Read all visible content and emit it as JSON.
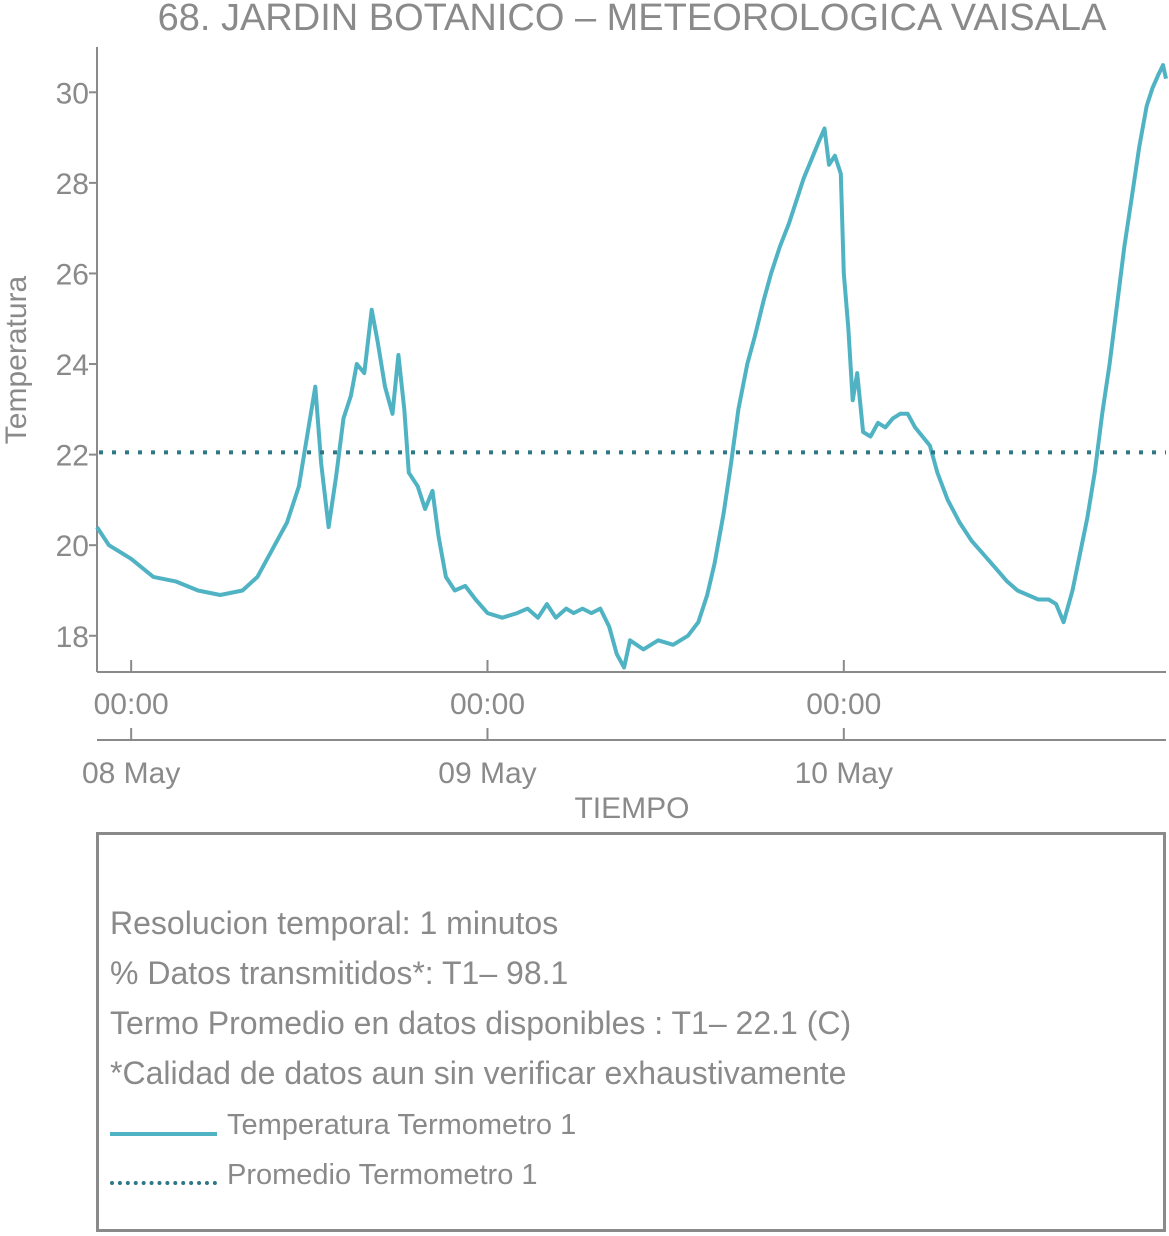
{
  "chart_data": {
    "type": "line",
    "title": "68. JARDIN BOTANICO – METEOROLOGICA VAISALA",
    "xlabel": "TIEMPO",
    "ylabel": "Temperatura",
    "x_unit": "hours since 08 May 00:00",
    "xlim": [
      -2.3,
      69.7
    ],
    "ylim": [
      17.2,
      31.0
    ],
    "yticks": [
      18,
      20,
      22,
      24,
      26,
      28,
      30
    ],
    "xticks": [
      {
        "x": 0,
        "time": "00:00",
        "date": "08 May"
      },
      {
        "x": 24,
        "time": "00:00",
        "date": "09 May"
      },
      {
        "x": 48,
        "time": "00:00",
        "date": "10 May"
      }
    ],
    "series": [
      {
        "name": "Temperatura Termometro 1",
        "color": "#4fb3c3",
        "style": "solid",
        "points": [
          [
            -2.3,
            20.4
          ],
          [
            -1.5,
            20.0
          ],
          [
            0,
            19.7
          ],
          [
            1.5,
            19.3
          ],
          [
            3,
            19.2
          ],
          [
            4.5,
            19.0
          ],
          [
            6,
            18.9
          ],
          [
            7.5,
            19.0
          ],
          [
            8.5,
            19.3
          ],
          [
            9.5,
            19.9
          ],
          [
            10.5,
            20.5
          ],
          [
            11.3,
            21.3
          ],
          [
            11.9,
            22.5
          ],
          [
            12.4,
            23.5
          ],
          [
            12.8,
            21.8
          ],
          [
            13.3,
            20.4
          ],
          [
            13.8,
            21.5
          ],
          [
            14.3,
            22.8
          ],
          [
            14.8,
            23.3
          ],
          [
            15.2,
            24.0
          ],
          [
            15.7,
            23.8
          ],
          [
            16.2,
            25.2
          ],
          [
            16.6,
            24.5
          ],
          [
            17.1,
            23.5
          ],
          [
            17.6,
            22.9
          ],
          [
            18.0,
            24.2
          ],
          [
            18.4,
            23.0
          ],
          [
            18.7,
            21.6
          ],
          [
            19.3,
            21.3
          ],
          [
            19.8,
            20.8
          ],
          [
            20.3,
            21.2
          ],
          [
            20.7,
            20.2
          ],
          [
            21.2,
            19.3
          ],
          [
            21.8,
            19.0
          ],
          [
            22.5,
            19.1
          ],
          [
            23.2,
            18.8
          ],
          [
            24.0,
            18.5
          ],
          [
            25.0,
            18.4
          ],
          [
            26.0,
            18.5
          ],
          [
            26.7,
            18.6
          ],
          [
            27.4,
            18.4
          ],
          [
            28.0,
            18.7
          ],
          [
            28.6,
            18.4
          ],
          [
            29.3,
            18.6
          ],
          [
            29.8,
            18.5
          ],
          [
            30.4,
            18.6
          ],
          [
            31.0,
            18.5
          ],
          [
            31.6,
            18.6
          ],
          [
            32.2,
            18.2
          ],
          [
            32.7,
            17.6
          ],
          [
            33.2,
            17.3
          ],
          [
            33.6,
            17.9
          ],
          [
            34.5,
            17.7
          ],
          [
            35.5,
            17.9
          ],
          [
            36.5,
            17.8
          ],
          [
            37.5,
            18.0
          ],
          [
            38.2,
            18.3
          ],
          [
            38.8,
            18.9
          ],
          [
            39.3,
            19.6
          ],
          [
            39.9,
            20.7
          ],
          [
            40.4,
            21.8
          ],
          [
            40.9,
            23.0
          ],
          [
            41.5,
            24.0
          ],
          [
            42.0,
            24.6
          ],
          [
            42.6,
            25.4
          ],
          [
            43.1,
            26.0
          ],
          [
            43.7,
            26.6
          ],
          [
            44.3,
            27.1
          ],
          [
            44.8,
            27.6
          ],
          [
            45.3,
            28.1
          ],
          [
            45.8,
            28.5
          ],
          [
            46.3,
            28.9
          ],
          [
            46.7,
            29.2
          ],
          [
            47.0,
            28.4
          ],
          [
            47.4,
            28.6
          ],
          [
            47.8,
            28.2
          ],
          [
            48.0,
            26.0
          ],
          [
            48.3,
            24.8
          ],
          [
            48.6,
            23.2
          ],
          [
            48.9,
            23.8
          ],
          [
            49.3,
            22.5
          ],
          [
            49.8,
            22.4
          ],
          [
            50.3,
            22.7
          ],
          [
            50.8,
            22.6
          ],
          [
            51.3,
            22.8
          ],
          [
            51.8,
            22.9
          ],
          [
            52.3,
            22.9
          ],
          [
            52.8,
            22.6
          ],
          [
            53.3,
            22.4
          ],
          [
            53.8,
            22.2
          ],
          [
            54.3,
            21.6
          ],
          [
            55.0,
            21.0
          ],
          [
            55.8,
            20.5
          ],
          [
            56.6,
            20.1
          ],
          [
            57.4,
            19.8
          ],
          [
            58.2,
            19.5
          ],
          [
            59.0,
            19.2
          ],
          [
            59.7,
            19.0
          ],
          [
            60.4,
            18.9
          ],
          [
            61.1,
            18.8
          ],
          [
            61.8,
            18.8
          ],
          [
            62.3,
            18.7
          ],
          [
            62.8,
            18.3
          ],
          [
            63.4,
            19.0
          ],
          [
            63.9,
            19.8
          ],
          [
            64.4,
            20.6
          ],
          [
            64.9,
            21.6
          ],
          [
            65.4,
            22.9
          ],
          [
            65.9,
            24.0
          ],
          [
            66.4,
            25.3
          ],
          [
            66.9,
            26.6
          ],
          [
            67.4,
            27.7
          ],
          [
            67.9,
            28.8
          ],
          [
            68.4,
            29.7
          ],
          [
            68.8,
            30.1
          ],
          [
            69.2,
            30.4
          ],
          [
            69.5,
            30.6
          ],
          [
            69.7,
            30.3
          ]
        ]
      },
      {
        "name": "Promedio Termometro 1",
        "color": "#2e7787",
        "style": "dotted",
        "value": 22.05
      }
    ]
  },
  "info": {
    "resolution": "Resolucion temporal: 1 minutos",
    "transmitted": "% Datos transmitidos*: T1– 98.1",
    "average": "Termo Promedio en datos disponibles : T1– 22.1 (C)",
    "quality": "*Calidad de datos aun sin verificar exhaustivamente"
  },
  "legend": {
    "series1": "Temperatura Termometro 1",
    "series2": "Promedio Termometro 1"
  }
}
